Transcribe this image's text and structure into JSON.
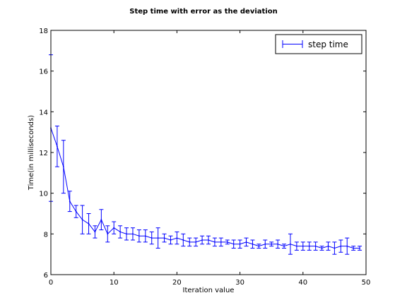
{
  "chart_data": {
    "type": "line",
    "title": "Step time with error as the deviation",
    "xlabel": "Iteration value",
    "ylabel": "Time(in milliseconds)",
    "xlim": [
      0,
      50
    ],
    "ylim": [
      6,
      18
    ],
    "xticks": [
      0,
      10,
      20,
      30,
      40,
      50
    ],
    "yticks": [
      6,
      8,
      10,
      12,
      14,
      16,
      18
    ],
    "grid": false,
    "legend_position": "top-right",
    "series": [
      {
        "name": "step time",
        "color": "#0000ff",
        "x": [
          0,
          1,
          2,
          3,
          4,
          5,
          6,
          7,
          8,
          9,
          10,
          11,
          12,
          13,
          14,
          15,
          16,
          17,
          18,
          19,
          20,
          21,
          22,
          23,
          24,
          25,
          26,
          27,
          28,
          29,
          30,
          31,
          32,
          33,
          34,
          35,
          36,
          37,
          38,
          39,
          40,
          41,
          42,
          43,
          44,
          45,
          46,
          47,
          48,
          49
        ],
        "y": [
          13.2,
          12.3,
          11.3,
          9.6,
          9.1,
          8.7,
          8.5,
          8.1,
          8.7,
          8.0,
          8.3,
          8.1,
          8.0,
          8.0,
          7.9,
          7.9,
          7.8,
          7.8,
          7.8,
          7.7,
          7.8,
          7.7,
          7.6,
          7.6,
          7.7,
          7.7,
          7.6,
          7.6,
          7.6,
          7.5,
          7.5,
          7.6,
          7.5,
          7.4,
          7.5,
          7.5,
          7.5,
          7.4,
          7.5,
          7.4,
          7.4,
          7.4,
          7.4,
          7.3,
          7.4,
          7.3,
          7.4,
          7.4,
          7.3,
          7.3
        ],
        "yerr": [
          3.6,
          1.0,
          1.3,
          0.5,
          0.3,
          0.7,
          0.5,
          0.3,
          0.5,
          0.4,
          0.3,
          0.3,
          0.3,
          0.3,
          0.3,
          0.3,
          0.3,
          0.5,
          0.2,
          0.2,
          0.3,
          0.3,
          0.2,
          0.2,
          0.2,
          0.2,
          0.2,
          0.2,
          0.1,
          0.2,
          0.2,
          0.2,
          0.2,
          0.1,
          0.2,
          0.1,
          0.2,
          0.1,
          0.5,
          0.2,
          0.2,
          0.2,
          0.2,
          0.1,
          0.2,
          0.3,
          0.3,
          0.4,
          0.1,
          0.1
        ]
      }
    ]
  }
}
